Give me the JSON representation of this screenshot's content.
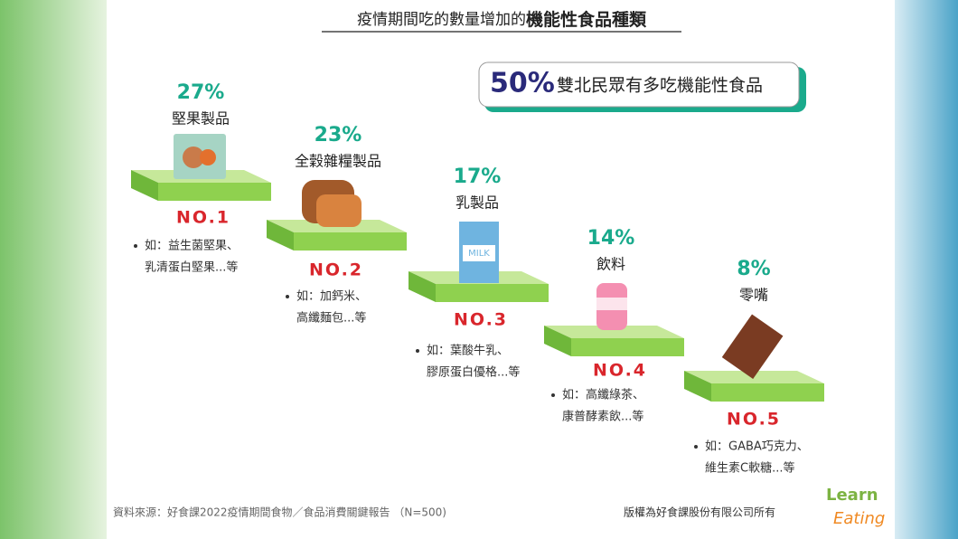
{
  "title": {
    "lead": "疫情期間吃的數量增加的",
    "emphasis": "機能性食品種類"
  },
  "badge": {
    "percent": "50%",
    "text": "雙北民眾有多吃機能性食品"
  },
  "items": [
    {
      "percent": "27%",
      "name": "堅果製品",
      "rank": "NO.1",
      "examples": [
        "如：益生菌堅果、",
        "乳清蛋白堅果...等"
      ]
    },
    {
      "percent": "23%",
      "name": "全穀雜糧製品",
      "rank": "NO.2",
      "examples": [
        "如：加鈣米、",
        "高纖麵包...等"
      ]
    },
    {
      "percent": "17%",
      "name": "乳製品",
      "rank": "NO.3",
      "examples": [
        "如：葉酸牛乳、",
        "膠原蛋白優格...等"
      ],
      "icon_text": "MILK"
    },
    {
      "percent": "14%",
      "name": "飲料",
      "rank": "NO.4",
      "examples": [
        "如：高纖綠茶、",
        "康普酵素飲...等"
      ]
    },
    {
      "percent": "8%",
      "name": "零嘴",
      "rank": "NO.5",
      "examples": [
        "如：GABA巧克力、",
        "維生素C軟糖...等"
      ]
    }
  ],
  "footer": {
    "source": "資料來源：好食課2022疫情期間食物／食品消費關鍵報告 （N=500)",
    "copyright": "版權為好食課股份有限公司所有",
    "logo": [
      "Learn",
      "Eating"
    ]
  }
}
